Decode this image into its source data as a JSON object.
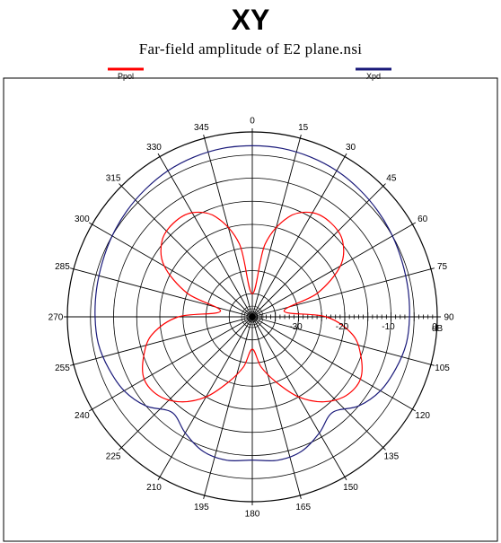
{
  "chart_data": {
    "type": "polar",
    "title": "XY",
    "subtitle": "Far-field amplitude of E2 plane.nsi",
    "angle_ticks": [
      "0",
      "15",
      "30",
      "45",
      "60",
      "75",
      "90",
      "105",
      "120",
      "135",
      "150",
      "165",
      "180",
      "195",
      "210",
      "225",
      "240",
      "255",
      "270",
      "285",
      "300",
      "315",
      "330",
      "345"
    ],
    "radial_unit": "dB",
    "radial_range": [
      -40,
      0
    ],
    "radial_ticks": [
      -30,
      -20,
      -10,
      0
    ],
    "radial_tick_labels": [
      "-30",
      "-20",
      "-10",
      "0"
    ],
    "legend": "top",
    "series": [
      {
        "name": "Ppol",
        "color": "#ff0000",
        "angles_deg": [
          0,
          10,
          20,
          30,
          40,
          50,
          60,
          70,
          80,
          90,
          100,
          110,
          120,
          130,
          140,
          150,
          160,
          170,
          180,
          190,
          200,
          210,
          220,
          230,
          240,
          250,
          260,
          270,
          280,
          290,
          300,
          310,
          320,
          330,
          340,
          350
        ],
        "values_db": [
          -35,
          -24,
          -17,
          -14,
          -13.5,
          -14.5,
          -18,
          -25,
          -33,
          -24,
          -18,
          -15,
          -13,
          -13.5,
          -16,
          -20,
          -25,
          -29,
          -33,
          -29,
          -25,
          -20,
          -16,
          -13.5,
          -13,
          -15,
          -18,
          -24,
          -33,
          -25,
          -18,
          -14.5,
          -13.5,
          -14,
          -17,
          -24
        ]
      },
      {
        "name": "Xpd",
        "color": "#1a1a7a",
        "angles_deg": [
          0,
          10,
          20,
          30,
          40,
          50,
          60,
          70,
          80,
          90,
          100,
          110,
          120,
          130,
          140,
          150,
          160,
          170,
          180,
          190,
          200,
          210,
          220,
          230,
          240,
          250,
          260,
          270,
          280,
          290,
          300,
          310,
          320,
          330,
          340,
          350
        ],
        "values_db": [
          -3,
          -3,
          -3.2,
          -3.5,
          -4,
          -4.5,
          -5,
          -5.5,
          -5.8,
          -6,
          -6.2,
          -7,
          -8,
          -10,
          -13,
          -11,
          -9,
          -8.5,
          -9,
          -8.5,
          -9,
          -11,
          -13,
          -10,
          -8,
          -7,
          -6.2,
          -6,
          -5.8,
          -5.5,
          -5,
          -4.5,
          -4,
          -3.5,
          -3.2,
          -3
        ]
      }
    ]
  }
}
